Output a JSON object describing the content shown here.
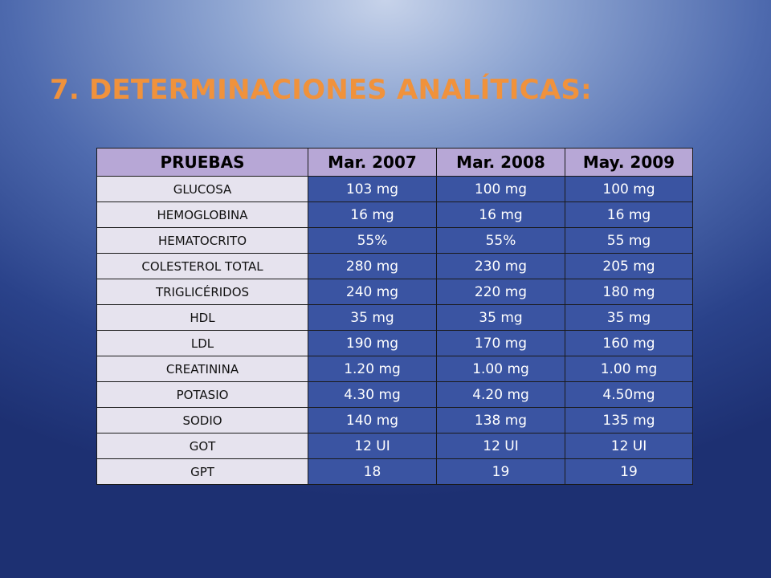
{
  "title": "7. DETERMINACIONES ANALÍTICAS:",
  "table": {
    "headers": [
      "PRUEBAS",
      "Mar. 2007",
      "Mar. 2008",
      "May. 2009"
    ],
    "rows": [
      [
        "GLUCOSA",
        "103 mg",
        "100 mg",
        "100 mg"
      ],
      [
        "HEMOGLOBINA",
        "16 mg",
        "16 mg",
        "16 mg"
      ],
      [
        "HEMATOCRITO",
        "55%",
        "55%",
        "55 mg"
      ],
      [
        "COLESTEROL TOTAL",
        "280 mg",
        "230 mg",
        "205 mg"
      ],
      [
        "TRIGLICÉRIDOS",
        "240 mg",
        "220 mg",
        "180 mg"
      ],
      [
        "HDL",
        "35 mg",
        "35 mg",
        "35 mg"
      ],
      [
        "LDL",
        "190 mg",
        "170 mg",
        "160 mg"
      ],
      [
        "CREATININA",
        "1.20 mg",
        "1.00 mg",
        "1.00 mg"
      ],
      [
        "POTASIO",
        "4.30 mg",
        "4.20 mg",
        "4.50mg"
      ],
      [
        "SODIO",
        "140 mg",
        "138 mg",
        "135 mg"
      ],
      [
        "GOT",
        "12 UI",
        "12 UI",
        "12 UI"
      ],
      [
        "GPT",
        "18",
        "19",
        "19"
      ]
    ]
  },
  "colors": {
    "title": "#f0923c",
    "header_bg": "#b7a7d6",
    "label_bg": "#e6e3ee",
    "value_bg": "#3a54a2"
  }
}
